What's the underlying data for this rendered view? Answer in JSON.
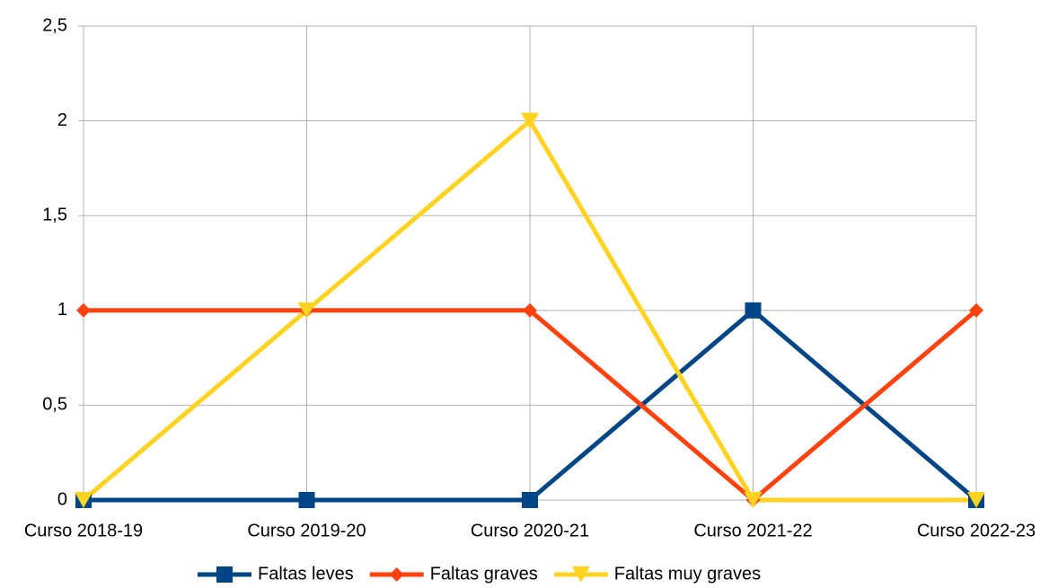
{
  "chart_data": {
    "type": "line",
    "categories": [
      "Curso 2018-19",
      "Curso 2019-20",
      "Curso 2020-21",
      "Curso 2021-22",
      "Curso 2022-23"
    ],
    "series": [
      {
        "name": "Faltas leves",
        "color": "#004586",
        "marker": "square",
        "values": [
          0,
          0,
          0,
          1,
          0
        ]
      },
      {
        "name": "Faltas graves",
        "color": "#ff420e",
        "marker": "diamond",
        "values": [
          1,
          1,
          1,
          0,
          1
        ]
      },
      {
        "name": "Faltas muy graves",
        "color": "#ffd320",
        "marker": "triangle-down",
        "values": [
          0,
          1,
          2,
          0,
          0
        ]
      }
    ],
    "ylim": [
      0,
      2.5
    ],
    "yticks": [
      0,
      {
        "value": 0.5,
        "label": "0,5"
      },
      1,
      {
        "value": 1.5,
        "label": "1,5"
      },
      2,
      {
        "value": 2.5,
        "label": "2,5"
      }
    ],
    "grid": true,
    "legend": "bottom"
  }
}
